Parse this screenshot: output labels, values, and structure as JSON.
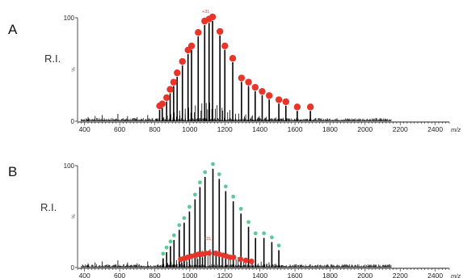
{
  "chart_data": [
    {
      "type": "line",
      "panel_label": "A",
      "ylabel": "R.I.",
      "ytick_labels": [
        "100",
        "%",
        "0"
      ],
      "xunit": "m/z",
      "xlim": [
        360,
        2480
      ],
      "ylim": [
        0,
        100
      ],
      "xticks": [
        400,
        600,
        800,
        1000,
        1200,
        1400,
        1600,
        1800,
        2000,
        2200,
        2400
      ],
      "annotation": "+31",
      "series": [
        {
          "marker": "red circle",
          "color": "#e8352a",
          "points": [
            [
              828,
              14
            ],
            [
              843,
              16
            ],
            [
              868,
              22
            ],
            [
              888,
              30
            ],
            [
              908,
              37
            ],
            [
              928,
              46
            ],
            [
              958,
              57
            ],
            [
              990,
              68
            ],
            [
              1010,
              72
            ],
            [
              1048,
              85
            ],
            [
              1085,
              96
            ],
            [
              1110,
              98
            ],
            [
              1130,
              100
            ],
            [
              1172,
              86
            ],
            [
              1200,
              72
            ],
            [
              1245,
              60
            ],
            [
              1295,
              41
            ],
            [
              1335,
              37
            ],
            [
              1373,
              32
            ],
            [
              1413,
              28
            ],
            [
              1453,
              24
            ],
            [
              1508,
              20
            ],
            [
              1548,
              18
            ],
            [
              1613,
              13
            ],
            [
              1688,
              13
            ]
          ]
        }
      ]
    },
    {
      "type": "line",
      "panel_label": "B",
      "ylabel": "R.I.",
      "ytick_labels": [
        "100",
        "%",
        "0"
      ],
      "xunit": "m/z",
      "xlim": [
        360,
        2480
      ],
      "ylim": [
        0,
        100
      ],
      "xticks": [
        400,
        600,
        800,
        1000,
        1200,
        1400,
        1600,
        1800,
        2000,
        2200,
        2400
      ],
      "annotation": "+31",
      "series": [
        {
          "marker": "green dot",
          "color": "#5ec896",
          "points": [
            [
              848,
              12
            ],
            [
              868,
              18
            ],
            [
              890,
              24
            ],
            [
              910,
              30
            ],
            [
              940,
              40
            ],
            [
              968,
              47
            ],
            [
              998,
              58
            ],
            [
              1030,
              70
            ],
            [
              1058,
              82
            ],
            [
              1087,
              92
            ],
            [
              1132,
              100
            ],
            [
              1168,
              90
            ],
            [
              1205,
              78
            ],
            [
              1248,
              68
            ],
            [
              1292,
              56
            ],
            [
              1335,
              43
            ],
            [
              1375,
              32
            ],
            [
              1423,
              32
            ],
            [
              1468,
              28
            ],
            [
              1508,
              20
            ]
          ]
        },
        {
          "marker": "red circle",
          "color": "#e8352a",
          "points": [
            [
              948,
              8
            ],
            [
              968,
              9
            ],
            [
              988,
              10
            ],
            [
              1008,
              11
            ],
            [
              1030,
              12
            ],
            [
              1048,
              13
            ],
            [
              1070,
              13
            ],
            [
              1090,
              14
            ],
            [
              1110,
              14
            ],
            [
              1148,
              14
            ],
            [
              1168,
              13
            ],
            [
              1190,
              12
            ],
            [
              1210,
              11
            ],
            [
              1230,
              10
            ],
            [
              1250,
              10
            ],
            [
              1290,
              8
            ],
            [
              1320,
              7
            ],
            [
              1352,
              6
            ]
          ]
        }
      ]
    }
  ]
}
